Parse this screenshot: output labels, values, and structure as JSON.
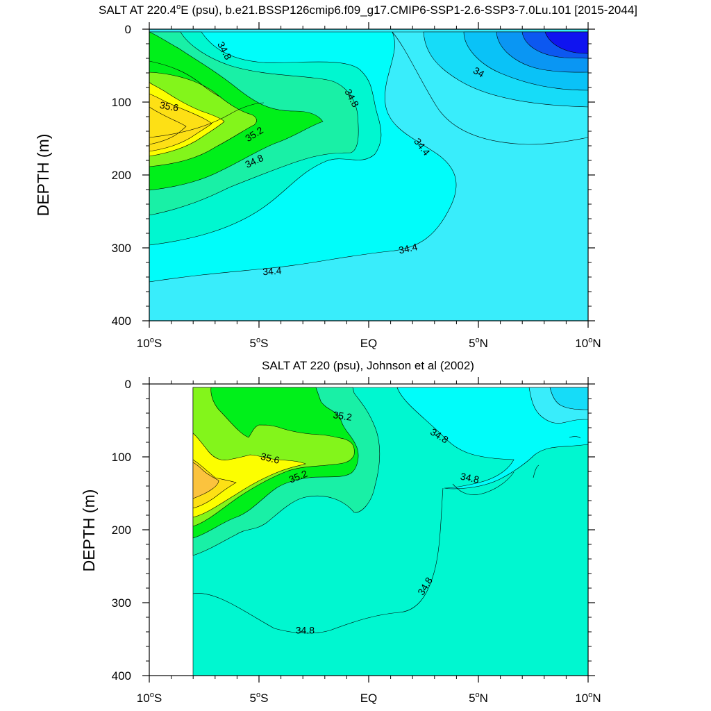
{
  "chart_data": [
    {
      "type": "contour",
      "title": "SALT AT 220.4°E (psu), b.e21.BSSP126cmip6.f09_g17.CMIP6-SSP1-2.6-SSP3-7.0Lu.101 [2015-2044]",
      "title_parts": {
        "before": "SALT AT 220.4",
        "sup": "o",
        "after": "E (psu), b.e21.BSSP126cmip6.f09_g17.CMIP6-SSP1-2.6-SSP3-7.0Lu.101 [2015-2044]"
      },
      "xlabel": "",
      "ylabel": "DEPTH (m)",
      "xlim": [
        -10,
        10
      ],
      "ylim": [
        0,
        400
      ],
      "y_inverted": true,
      "x_ticks": [
        {
          "v": -10,
          "label": "10",
          "sup": "o",
          "suf": "S"
        },
        {
          "v": -5,
          "label": "5",
          "sup": "o",
          "suf": "S"
        },
        {
          "v": 0,
          "label": "EQ",
          "sup": "",
          "suf": ""
        },
        {
          "v": 5,
          "label": "5",
          "sup": "o",
          "suf": "N"
        },
        {
          "v": 10,
          "label": "10",
          "sup": "o",
          "suf": "N"
        }
      ],
      "y_ticks": [
        "0",
        "100",
        "200",
        "300",
        "400"
      ],
      "contour_labels": [
        {
          "text": "34.8",
          "lon": -6.6,
          "depth": 30,
          "rot": 62
        },
        {
          "text": "34.8",
          "lon": -0.8,
          "depth": 95,
          "rot": 62
        },
        {
          "text": "34",
          "lon": 5.0,
          "depth": 60,
          "rot": 30
        },
        {
          "text": "35.6",
          "lon": -9.1,
          "depth": 107,
          "rot": 10
        },
        {
          "text": "35.2",
          "lon": -5.2,
          "depth": 145,
          "rot": -32
        },
        {
          "text": "34.8",
          "lon": -5.2,
          "depth": 182,
          "rot": -25
        },
        {
          "text": "34.4",
          "lon": 2.4,
          "depth": 162,
          "rot": 52
        },
        {
          "text": "34.4",
          "lon": 1.8,
          "depth": 302,
          "rot": -12
        },
        {
          "text": "34.4",
          "lon": -4.4,
          "depth": 333,
          "rot": -4
        }
      ]
    },
    {
      "type": "contour",
      "title": "SALT AT 220 (psu), Johnson et al (2002)",
      "title_parts": {
        "before": "SALT AT 220 (psu), Johnson et al (2002)",
        "sup": "",
        "after": ""
      },
      "xlabel": "",
      "ylabel": "DEPTH (m)",
      "xlim": [
        -10,
        10
      ],
      "ylim": [
        0,
        400
      ],
      "y_inverted": true,
      "data_lon_range": [
        -8,
        10
      ],
      "x_ticks": [
        {
          "v": -10,
          "label": "10",
          "sup": "o",
          "suf": "S"
        },
        {
          "v": -5,
          "label": "5",
          "sup": "o",
          "suf": "S"
        },
        {
          "v": 0,
          "label": "EQ",
          "sup": "",
          "suf": ""
        },
        {
          "v": 5,
          "label": "5",
          "sup": "o",
          "suf": "N"
        },
        {
          "v": 10,
          "label": "10",
          "sup": "o",
          "suf": "N"
        }
      ],
      "y_ticks": [
        "0",
        "100",
        "200",
        "300",
        "400"
      ],
      "contour_labels": [
        {
          "text": "35.2",
          "lon": -1.2,
          "depth": 45,
          "rot": 8
        },
        {
          "text": "34.8",
          "lon": 3.2,
          "depth": 72,
          "rot": 32
        },
        {
          "text": "35.6",
          "lon": -4.5,
          "depth": 103,
          "rot": 14
        },
        {
          "text": "35.2",
          "lon": -3.2,
          "depth": 128,
          "rot": -22
        },
        {
          "text": "34.8",
          "lon": 4.6,
          "depth": 130,
          "rot": 12
        },
        {
          "text": "34.8",
          "lon": 2.6,
          "depth": 278,
          "rot": -58
        },
        {
          "text": "34.8",
          "lon": -2.9,
          "depth": 339,
          "rot": 0
        }
      ]
    }
  ],
  "colors": {
    "s33_6": "#0f14f0",
    "s33_8": "#0c58f0",
    "s34_0": "#0a96f3",
    "s34_2": "#0ac2f7",
    "s34_4": "#16dcf8",
    "s34_6": "#39edfb",
    "s34_8": "#00fdfa",
    "s35_0": "#00f7d0",
    "s35_2": "#19f0a6",
    "s35_4": "#00f01a",
    "s35_6": "#83f51b",
    "s35_8": "#fcfe00",
    "s36_0": "#fde015",
    "s36_2": "#fbc33e"
  }
}
